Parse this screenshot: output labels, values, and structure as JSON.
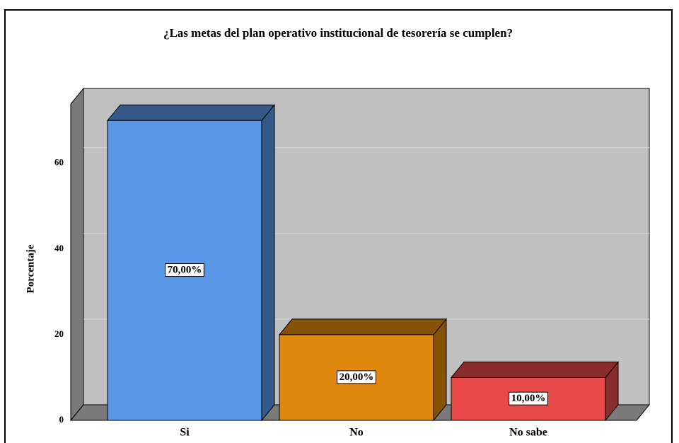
{
  "chart_data": {
    "type": "bar",
    "title": "¿Las metas del plan operativo institucional de tesorería se cumplen?",
    "y_label": "Porcentaje",
    "categories": [
      "Si",
      "No",
      "No sabe"
    ],
    "values": [
      70,
      20,
      10
    ],
    "value_labels": [
      "70,00%",
      "20,00%",
      "10,00%"
    ],
    "colors": [
      "#5896e6",
      "#e0880d",
      "#e84a4a"
    ],
    "ylim": [
      0,
      74
    ],
    "yticks": [
      0,
      20,
      40,
      60
    ],
    "grid": true
  }
}
